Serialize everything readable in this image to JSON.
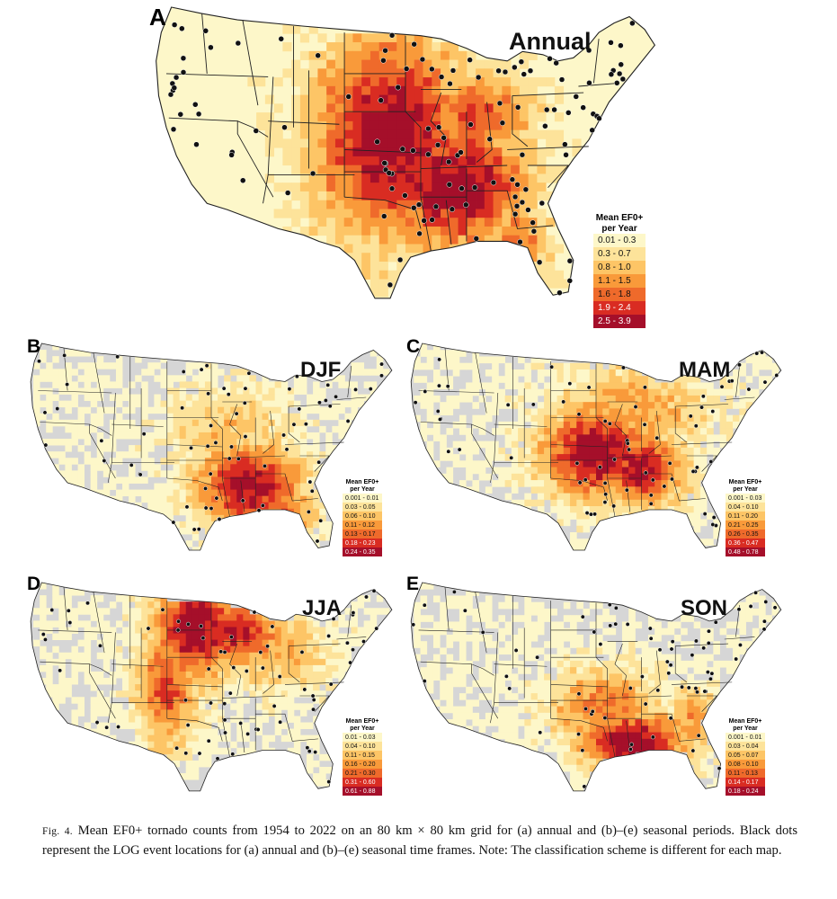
{
  "panels": [
    {
      "id": "A",
      "letter": "A",
      "title": "Annual",
      "period": "annual",
      "legend": {
        "title_line1": "Mean EF0+",
        "title_line2": "per Year",
        "classes": [
          "0.01 - 0.3",
          "0.3 - 0.7",
          "0.8 - 1.0",
          "1.1 - 1.5",
          "1.6 - 1.8",
          "1.9 - 2.4",
          "2.5 - 3.9"
        ]
      },
      "intensity": "high",
      "null_color": "#fdf7c9"
    },
    {
      "id": "B",
      "letter": "B",
      "title": "DJF",
      "period": "winter",
      "legend": {
        "title_line1": "Mean EF0+",
        "title_line2": "per Year",
        "classes": [
          "0.001 - 0.01",
          "0.03 - 0.05",
          "0.06 - 0.10",
          "0.11 - 0.12",
          "0.13 - 0.17",
          "0.18 - 0.23",
          "0.24 - 0.35"
        ]
      },
      "intensity": "south",
      "null_color": "#d6d6d6"
    },
    {
      "id": "C",
      "letter": "C",
      "title": "MAM",
      "period": "spring",
      "legend": {
        "title_line1": "Mean EF0+",
        "title_line2": "per Year",
        "classes": [
          "0.001 - 0.03",
          "0.04 - 0.10",
          "0.11 - 0.20",
          "0.21 - 0.25",
          "0.26 - 0.35",
          "0.36 - 0.47",
          "0.48 - 0.78"
        ]
      },
      "intensity": "central",
      "null_color": "#d6d6d6"
    },
    {
      "id": "D",
      "letter": "D",
      "title": "JJA",
      "period": "summer",
      "legend": {
        "title_line1": "Mean EF0+",
        "title_line2": "per Year",
        "classes": [
          "0.01 - 0.03",
          "0.04 - 0.10",
          "0.11 - 0.15",
          "0.16 - 0.20",
          "0.21 - 0.30",
          "0.31 - 0.60",
          "0.61 - 0.88"
        ]
      },
      "intensity": "north",
      "null_color": "#d6d6d6"
    },
    {
      "id": "E",
      "letter": "E",
      "title": "SON",
      "period": "fall",
      "legend": {
        "title_line1": "Mean EF0+",
        "title_line2": "per Year",
        "classes": [
          "0.001 - 0.01",
          "0.03 - 0.04",
          "0.05 - 0.07",
          "0.08 - 0.10",
          "0.11 - 0.13",
          "0.14 - 0.17",
          "0.18 - 0.24"
        ]
      },
      "intensity": "gulf",
      "null_color": "#d6d6d6"
    }
  ],
  "colors": {
    "classes": [
      "#fdf7c9",
      "#fde39a",
      "#fdc566",
      "#f99a3a",
      "#ef6a2b",
      "#d92c22",
      "#a50f2a"
    ],
    "dot": "#111111",
    "state_line": "#222222"
  },
  "caption": {
    "fig_label": "Fig. 4.",
    "text": "Mean EF0+ tornado counts from 1954 to 2022 on an 80 km × 80 km grid for (a) annual and (b)–(e) seasonal periods. Black dots represent the LOG event locations for (a) annual and (b)–(e) seasonal time frames. Note: The classification scheme is different for each map."
  }
}
